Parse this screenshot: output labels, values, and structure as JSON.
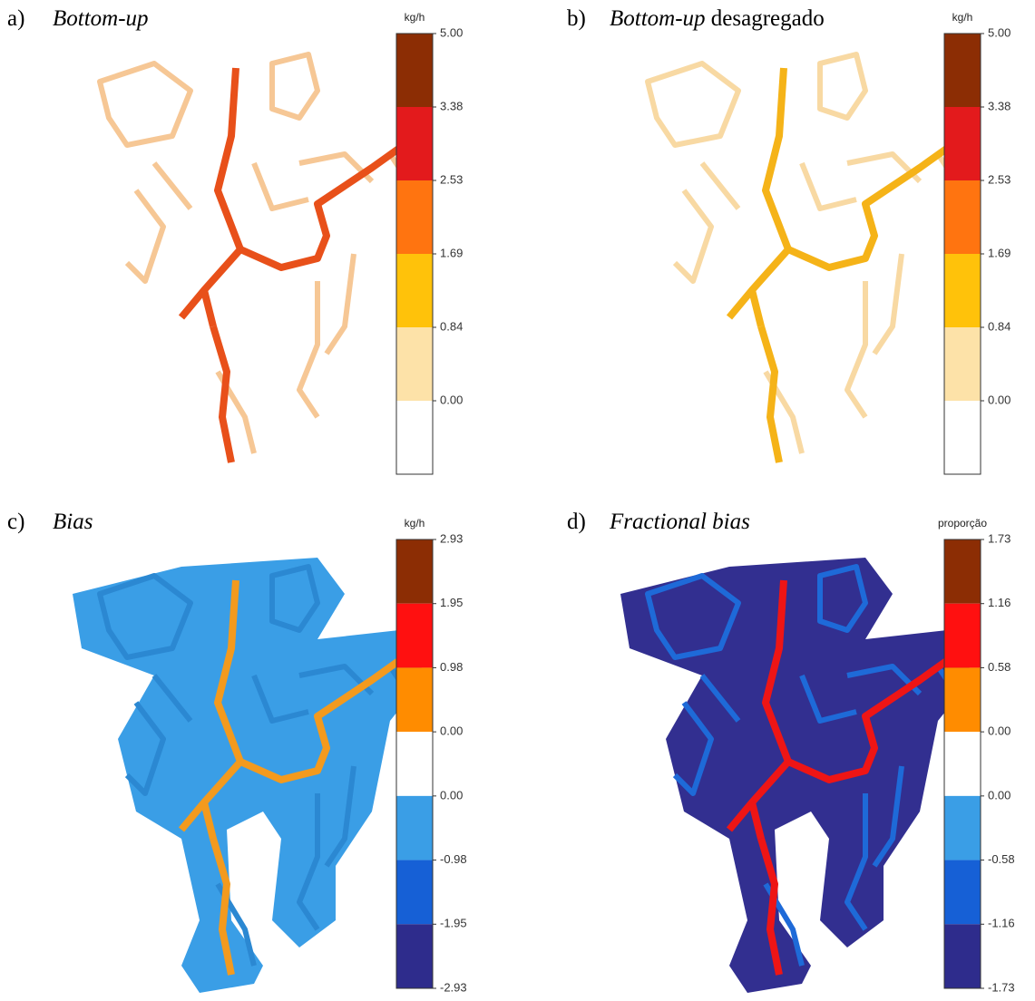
{
  "panels": [
    {
      "letter": "a)",
      "title_italic": "Bottom-up",
      "title_rest": "",
      "unit": "kg/h",
      "labels": [
        "5.00",
        "3.38",
        "2.53",
        "1.69",
        "0.84",
        "0.00"
      ],
      "colors": [
        "#8c2d04",
        "#e31a1c",
        "#ff7410",
        "#ffc20a",
        "#fde2a8",
        "#ffffff"
      ]
    },
    {
      "letter": "b)",
      "title_italic": "Bottom-up",
      "title_rest": " desagregado",
      "unit": "kg/h",
      "labels": [
        "5.00",
        "3.38",
        "2.53",
        "1.69",
        "0.84",
        "0.00"
      ],
      "colors": [
        "#8c2d04",
        "#e31a1c",
        "#ff7410",
        "#ffc20a",
        "#fde2a8",
        "#ffffff"
      ]
    },
    {
      "letter": "c)",
      "title_italic": "Bias",
      "title_rest": "",
      "unit": "kg/h",
      "labels": [
        "2.93",
        "1.95",
        "0.98",
        "0.00",
        "0.00",
        "-0.98",
        "-1.95",
        "-2.93"
      ],
      "colors": [
        "#8c2d04",
        "#ff1010",
        "#ff8c00",
        "#ffffff",
        "#3a9ee6",
        "#1660d6",
        "#2e2c8c"
      ]
    },
    {
      "letter": "d)",
      "title_italic": "Fractional bias",
      "title_rest": "",
      "unit": "proporção",
      "labels": [
        "1.73",
        "1.16",
        "0.58",
        "0.00",
        "0.00",
        "-0.58",
        "-1.16",
        "-1.73"
      ],
      "colors": [
        "#8c2d04",
        "#ff1010",
        "#ff8c00",
        "#ffffff",
        "#3a9ee6",
        "#1660d6",
        "#2e2c8c"
      ]
    }
  ]
}
